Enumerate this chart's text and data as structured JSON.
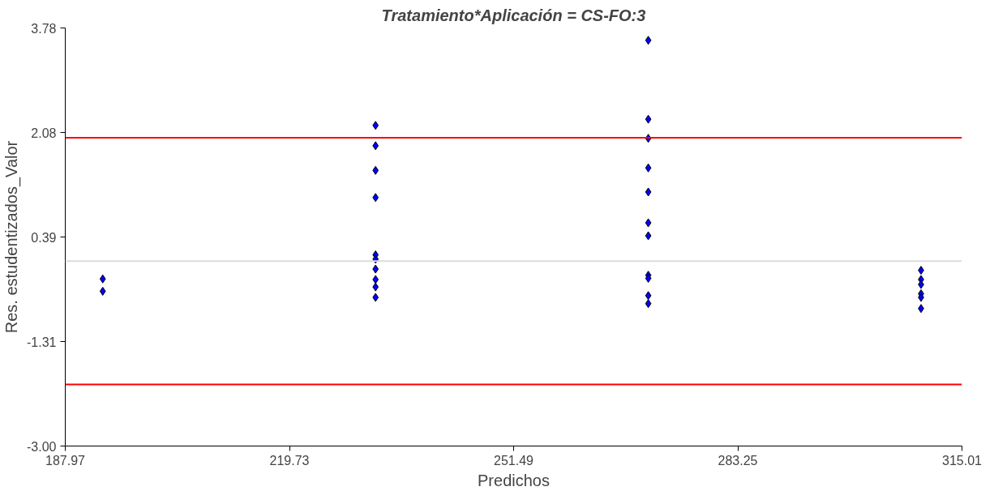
{
  "chart_data": {
    "type": "scatter",
    "title": "Tratamiento*Aplicación = CS-FO:3",
    "xlabel": "Predichos",
    "ylabel": "Res. estudentizados_Valor",
    "marker": "diamond",
    "grid": false,
    "series": [
      {
        "color": "#0000ff",
        "x": [
          193.28,
          193.28,
          231.93,
          231.93,
          231.93,
          231.93,
          231.93,
          231.93,
          231.93,
          231.93,
          231.93,
          231.93,
          270.57,
          270.57,
          270.57,
          270.57,
          270.57,
          270.57,
          270.57,
          270.57,
          270.57,
          270.57,
          270.57,
          309.21,
          309.21,
          309.21,
          309.21,
          309.21,
          309.21
        ],
        "values": [
          -0.29,
          -0.49,
          2.2,
          1.87,
          1.47,
          1.03,
          0.1,
          0.03,
          -0.13,
          -0.3,
          -0.42,
          -0.59,
          3.58,
          2.3,
          1.99,
          1.51,
          1.12,
          0.62,
          0.41,
          -0.23,
          -0.28,
          -0.56,
          -0.69,
          -0.15,
          -0.3,
          -0.38,
          -0.53,
          -0.59,
          -0.77
        ]
      }
    ],
    "xlim": [
      187.97,
      315.01
    ],
    "xticks": [
      187.97,
      219.73,
      251.49,
      283.25,
      315.01
    ],
    "ylim": [
      -3.0,
      3.78
    ],
    "yticks": [
      {
        "value": -3,
        "label": "-3.00"
      },
      -1.31,
      0.39,
      2.08,
      3.78
    ],
    "ref_lines": [
      {
        "axis": "y",
        "value": 2,
        "color": "#ff0000"
      },
      {
        "axis": "y",
        "value": -2,
        "color": "#ff0000"
      },
      {
        "axis": "y",
        "value": 0,
        "color": "#dddddd"
      }
    ]
  }
}
